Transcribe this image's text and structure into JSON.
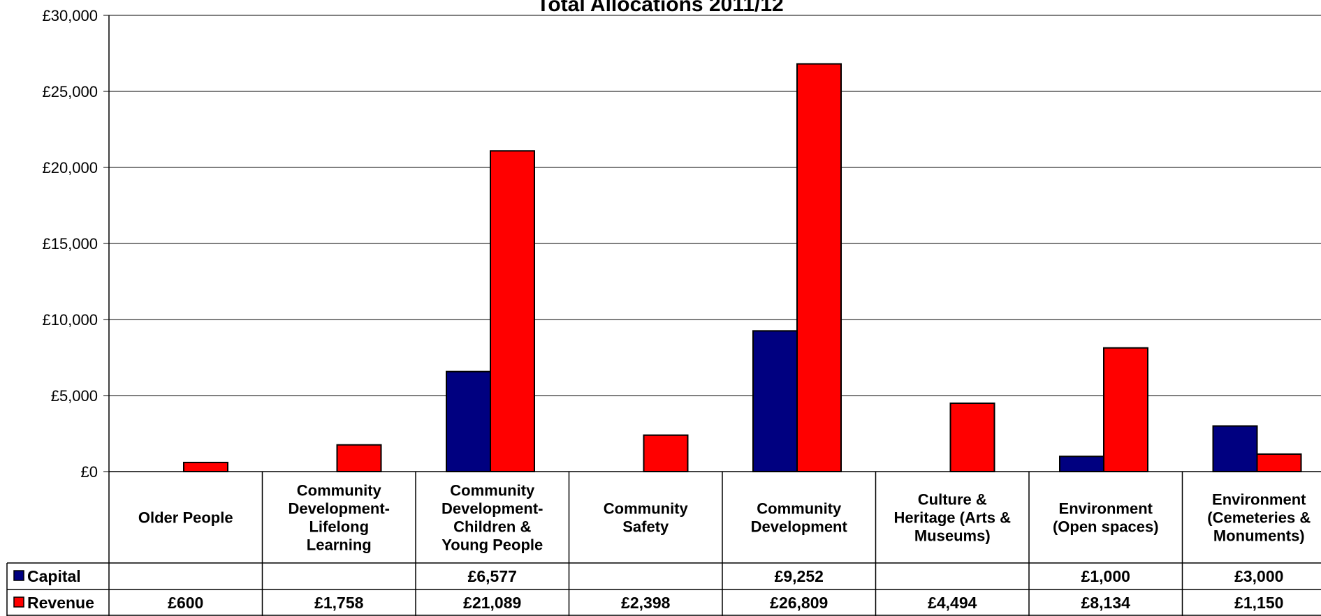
{
  "chart_data": {
    "type": "bar",
    "title": "Total Allocations 2011/12",
    "xlabel": "",
    "ylabel": "",
    "ylim": [
      0,
      30000
    ],
    "yticks": [
      "£0",
      "£5,000",
      "£10,000",
      "£15,000",
      "£20,000",
      "£25,000",
      "£30,000"
    ],
    "ytick_values": [
      0,
      5000,
      10000,
      15000,
      20000,
      25000,
      30000
    ],
    "grid": true,
    "legend": "data-table-left",
    "categories": [
      [
        "Older People"
      ],
      [
        "Community",
        "Development-",
        "Lifelong",
        "Learning"
      ],
      [
        "Community",
        "Development-",
        "Children &",
        "Young People"
      ],
      [
        "Community",
        "Safety"
      ],
      [
        "Community",
        "Development"
      ],
      [
        "Culture &",
        "Heritage (Arts &",
        "Museums)"
      ],
      [
        "Environment",
        "(Open spaces)"
      ],
      [
        "Environment",
        "(Cemeteries &",
        "Monuments)"
      ]
    ],
    "series": [
      {
        "name": "Capital",
        "color": "#000080",
        "values": [
          null,
          null,
          6577,
          null,
          9252,
          null,
          1000,
          3000
        ],
        "labels": [
          "",
          "",
          "£6,577",
          "",
          "£9,252",
          "",
          "£1,000",
          "£3,000"
        ]
      },
      {
        "name": "Revenue",
        "color": "#ff0000",
        "values": [
          600,
          1758,
          21089,
          2398,
          26809,
          4494,
          8134,
          1150
        ],
        "labels": [
          "£600",
          "£1,758",
          "£21,089",
          "£2,398",
          "£26,809",
          "£4,494",
          "£8,134",
          "£1,150"
        ]
      }
    ]
  }
}
